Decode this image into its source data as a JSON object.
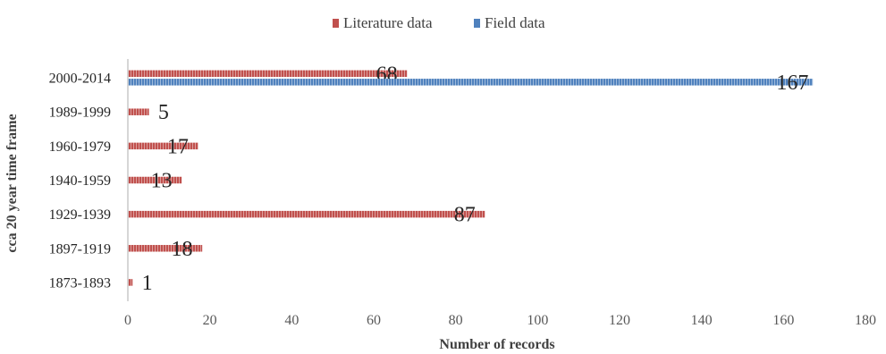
{
  "chart_data": {
    "type": "bar",
    "orientation": "horizontal",
    "categories": [
      "1873-1893",
      "1897-1919",
      "1929-1939",
      "1940-1959",
      "1960-1979",
      "1989-1999",
      "2000-2014"
    ],
    "series": [
      {
        "name": "Literature data",
        "color": "#c0504d",
        "values": [
          1,
          18,
          87,
          13,
          17,
          5,
          68
        ]
      },
      {
        "name": "Field data",
        "color": "#4f81bd",
        "values": [
          null,
          null,
          null,
          null,
          null,
          null,
          167
        ]
      }
    ],
    "xlabel": "Number of records",
    "ylabel": "cca 20 year time frame",
    "xlim": [
      0,
      180
    ],
    "xticks": [
      0,
      20,
      40,
      60,
      80,
      100,
      120,
      140,
      160,
      180
    ],
    "legend_position": "top",
    "grid": false,
    "data_labels": true
  }
}
